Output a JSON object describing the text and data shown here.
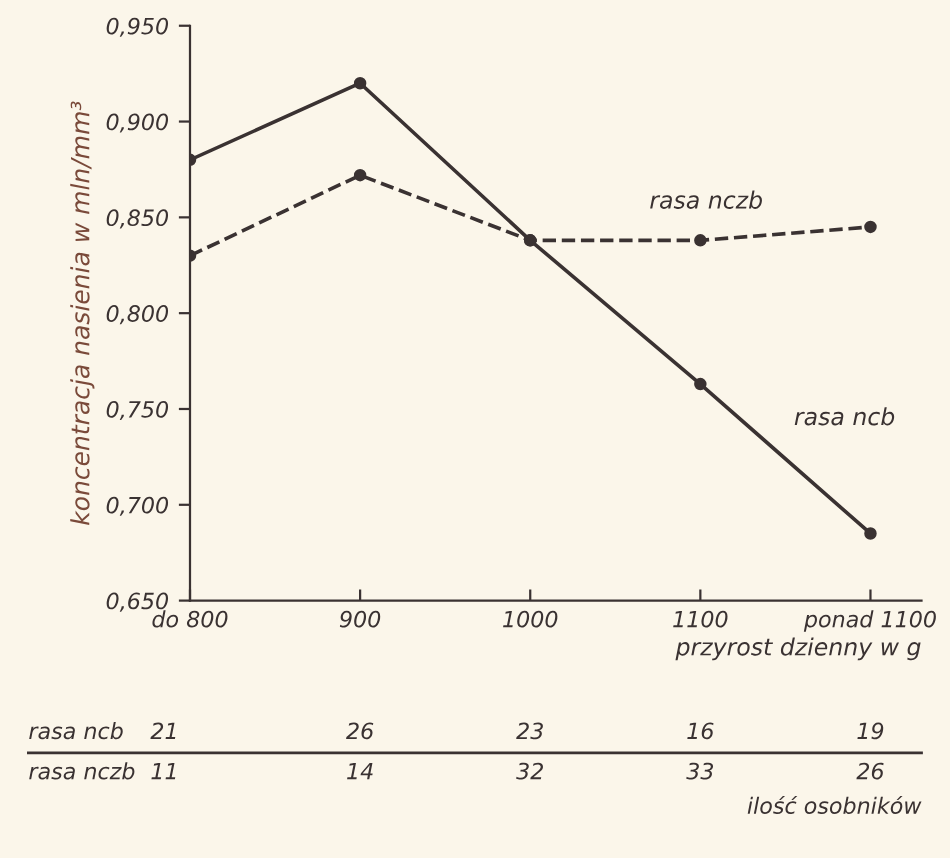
{
  "chart_data": {
    "type": "line",
    "xlabel": "przyrost dzienny w g",
    "ylabel": "koncentracja nasienia w mln/mm³",
    "categories": [
      "do 800",
      "900",
      "1000",
      "1100",
      "ponad 1100"
    ],
    "series": [
      {
        "name": "rasa ncb",
        "color": "#3a3232",
        "line_style": "solid",
        "values": [
          0.88,
          0.92,
          0.838,
          0.763,
          0.685
        ]
      },
      {
        "name": "rasa nczb",
        "color": "#3a3232",
        "line_style": "dashed",
        "values": [
          0.83,
          0.872,
          0.838,
          0.838,
          0.845
        ]
      }
    ],
    "ylim": [
      0.65,
      0.95
    ],
    "yticks": [
      {
        "value": 0.65,
        "label": "0,650"
      },
      {
        "value": 0.7,
        "label": "0,700"
      },
      {
        "value": 0.75,
        "label": "0,750"
      },
      {
        "value": 0.8,
        "label": "0,800"
      },
      {
        "value": 0.85,
        "label": "0,850"
      },
      {
        "value": 0.9,
        "label": "0,900"
      },
      {
        "value": 0.95,
        "label": "0,950"
      }
    ],
    "marker": "circle",
    "grid": false,
    "legend": false,
    "annotations": [
      "rasa ncb",
      "21",
      "26",
      "23",
      "16",
      "19",
      "rasa nczb",
      "11",
      "14",
      "32",
      "33",
      "26",
      "ilość osobników"
    ]
  }
}
